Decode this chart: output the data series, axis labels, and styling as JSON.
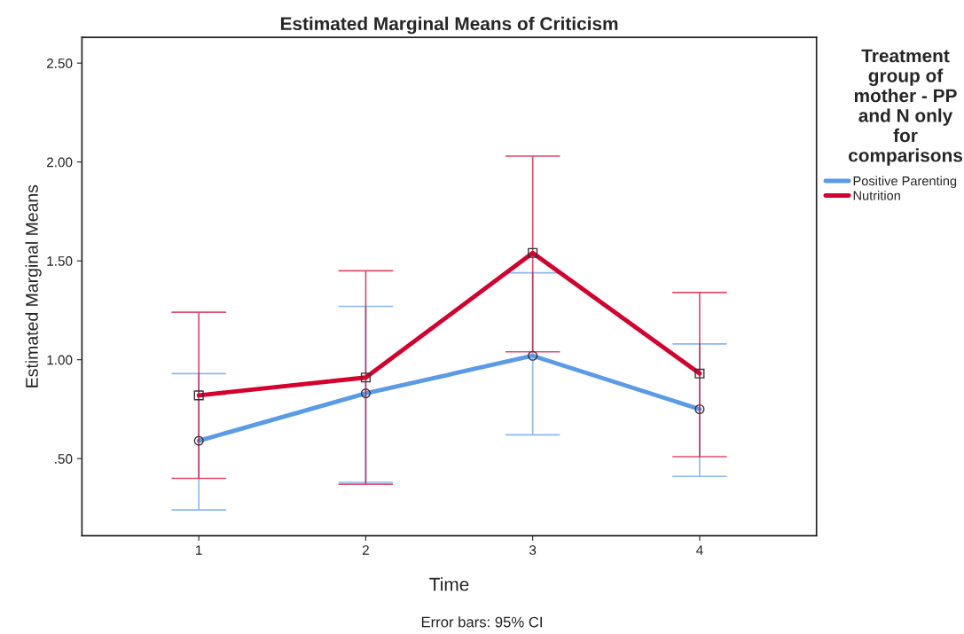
{
  "chart_data": {
    "type": "line",
    "title": "Estimated Marginal Means of Criticism",
    "xlabel": "Time",
    "ylabel": "Estimated Marginal Means",
    "legend_title": "Treatment group of mother - PP and N only for comparisons",
    "categories": [
      "1",
      "2",
      "3",
      "4"
    ],
    "series": [
      {
        "name": "Positive Parenting",
        "color": "#5b9be6",
        "marker": "circle",
        "values": [
          0.59,
          0.83,
          1.02,
          0.75
        ],
        "errors": [
          [
            0.24,
            0.93
          ],
          [
            0.38,
            1.27
          ],
          [
            0.62,
            1.44
          ],
          [
            0.41,
            1.08
          ]
        ]
      },
      {
        "name": "Nutrition",
        "color": "#d4002e",
        "marker": "square",
        "values": [
          0.82,
          0.91,
          1.54,
          0.93
        ],
        "errors": [
          [
            0.4,
            1.24
          ],
          [
            0.37,
            1.45
          ],
          [
            1.04,
            2.03
          ],
          [
            0.51,
            1.34
          ]
        ]
      }
    ],
    "ylim": [
      0.11,
      2.63
    ],
    "yticks": [
      {
        "value": 0.5,
        "label": ".50"
      },
      {
        "value": 1.0,
        "label": "1.00"
      },
      {
        "value": 1.5,
        "label": "1.50"
      },
      {
        "value": 2.0,
        "label": "2.00"
      },
      {
        "value": 2.5,
        "label": "2.50"
      }
    ],
    "grid": false,
    "legend": "right",
    "annotations": [
      "Error bars: 95% CI"
    ]
  }
}
